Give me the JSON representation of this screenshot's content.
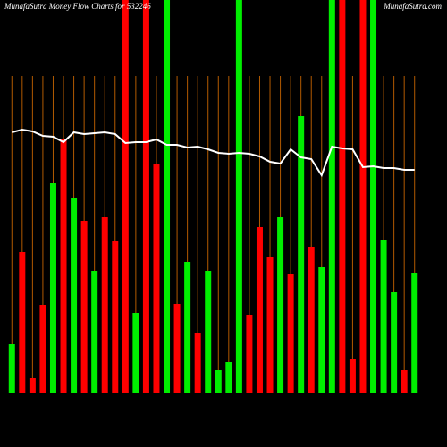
{
  "chart_data": {
    "type": "bar",
    "title": "MunafaSutra  Money Flow  Charts for 532246",
    "site": "MunafaSutra.com",
    "ylim": [
      0,
      440
    ],
    "values": [
      55,
      158,
      17,
      99,
      235,
      285,
      218,
      193,
      137,
      197,
      170,
      440,
      90,
      440,
      256,
      440,
      100,
      147,
      68,
      137,
      26,
      35,
      440,
      88,
      186,
      153,
      197,
      133,
      310,
      164,
      141,
      440,
      440,
      38,
      440,
      440,
      171,
      113,
      26,
      135
    ],
    "bar_colors": [
      "#00ee00",
      "#ff0000",
      "#ff0000",
      "#ff0000",
      "#00ee00",
      "#ff0000",
      "#00ee00",
      "#ff0000",
      "#00ee00",
      "#ff0000",
      "#ff0000",
      "#ff0000",
      "#00ee00",
      "#ff0000",
      "#ff0000",
      "#00ee00",
      "#ff0000",
      "#00ee00",
      "#ff0000",
      "#00ee00",
      "#00ee00",
      "#00ee00",
      "#00ee00",
      "#ff0000",
      "#ff0000",
      "#ff0000",
      "#00ee00",
      "#ff0000",
      "#00ee00",
      "#ff0000",
      "#00ee00",
      "#00ee00",
      "#ff0000",
      "#ff0000",
      "#ff0000",
      "#00ee00",
      "#00ee00",
      "#00ee00",
      "#ff0000",
      "#00ee00"
    ],
    "line": {
      "color": "#ffffff",
      "values": [
        292,
        295,
        293,
        288,
        287,
        281,
        292,
        290,
        291,
        292,
        290,
        280,
        281,
        281,
        284,
        278,
        278,
        275,
        276,
        273,
        269,
        268,
        269,
        268,
        265,
        259,
        257,
        273,
        264,
        262,
        244,
        276,
        274,
        273,
        253,
        254,
        252,
        252,
        250,
        250
      ]
    },
    "grid_color": "#b25a00"
  }
}
